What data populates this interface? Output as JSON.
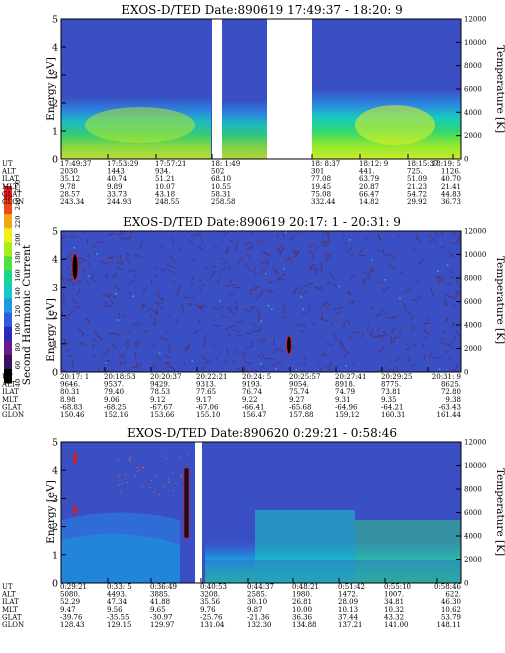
{
  "colors": {
    "background": "#3a4fc4",
    "noise": "#5b2a58",
    "colorbar": [
      "#000000",
      "#3a1060",
      "#6a1a8a",
      "#2a2ab8",
      "#2f5fd8",
      "#1e9ae0",
      "#16c8c8",
      "#18d890",
      "#50e040",
      "#a8ec20",
      "#f0f018",
      "#f0a818",
      "#f04818",
      "#e81818"
    ]
  },
  "colorbar_label": "Second Harmonic Current",
  "colorbar_ticks": [
    "40",
    "60",
    "80",
    "100",
    "120",
    "140",
    "160",
    "180",
    "200",
    "220",
    "240",
    "250"
  ],
  "chart_data": [
    {
      "type": "heatmap",
      "title": "EXOS-D/TED   Date:890619  17:49:37 - 18:20: 9",
      "ylabel": "Energy [eV]",
      "ylabel_right": "Temperature [K]",
      "ylim": [
        0,
        5
      ],
      "ylim_right": [
        0,
        12000
      ],
      "yticks": [
        "0",
        "1",
        "2",
        "3",
        "4",
        "5"
      ],
      "yticks_right": [
        "0",
        "2000",
        "4000",
        "6000",
        "8000",
        "10000",
        "12000"
      ],
      "gaps": [
        [
          0.31,
          0.35
        ],
        [
          0.55,
          0.69
        ]
      ],
      "row_labels": [
        "UT",
        "ALT",
        "ILAT",
        "MLT",
        "GLAT",
        "GLON"
      ],
      "columns": [
        {
          "UT": "17:49:37",
          "ALT": "2030",
          "ILAT": "35.12",
          "MLT": "9.78",
          "GLAT": "28.57",
          "GLON": "243.34"
        },
        {
          "UT": "17:53:29",
          "ALT": "1443",
          "ILAT": "40.74",
          "MLT": "9.89",
          "GLAT": "33.73",
          "GLON": "244.93"
        },
        {
          "UT": "17:57:21",
          "ALT": "934.",
          "ILAT": "51.21",
          "MLT": "10.07",
          "GLAT": "43.18",
          "GLON": "248.55"
        },
        {
          "UT": "18: 1:49",
          "ALT": "502",
          "ILAT": "68.10",
          "MLT": "10.55",
          "GLAT": "58.31",
          "GLON": "258.58"
        },
        {
          "UT": "18: 8:37",
          "ALT": "301",
          "ILAT": "77.08",
          "MLT": "19.45",
          "GLAT": "75.08",
          "GLON": "332.44"
        },
        {
          "UT": "18:12: 9",
          "ALT": "441.",
          "ILAT": "63.79",
          "MLT": "20.87",
          "GLAT": "66.47",
          "GLON": "14.82"
        },
        {
          "UT": "18:15:37",
          "ALT": "725.",
          "ILAT": "51.09",
          "MLT": "21.23",
          "GLAT": "54.72",
          "GLON": "29.92"
        },
        {
          "UT": "18:19: 5",
          "ALT": "1126.",
          "ILAT": "40.70",
          "MLT": "21.41",
          "GLAT": "44.83",
          "GLON": "36.73"
        }
      ]
    },
    {
      "type": "heatmap",
      "title": "EXOS-D/TED   Date:890619  20:17: 1 - 20:31: 9",
      "ylabel": "Energy [eV]",
      "ylabel_right": "Temperature [K]",
      "ylim": [
        0,
        5
      ],
      "ylim_right": [
        0,
        12000
      ],
      "yticks": [
        "0",
        "1",
        "2",
        "3",
        "4",
        "5"
      ],
      "yticks_right": [
        "0",
        "2000",
        "4000",
        "6000",
        "8000",
        "10000",
        "12000"
      ],
      "gaps": [],
      "row_labels": [
        "UT",
        "ALT",
        "ILAT",
        "MLT",
        "GLAT",
        "GLON"
      ],
      "columns": [
        {
          "UT": "20:17: 1",
          "ALT": "9646.",
          "ILAT": "80.31",
          "MLT": "8.98",
          "GLAT": "-68.83",
          "GLON": "150.46"
        },
        {
          "UT": "20:18:53",
          "ALT": "9537.",
          "ILAT": "79.40",
          "MLT": "9.06",
          "GLAT": "-68.25",
          "GLON": "152.16"
        },
        {
          "UT": "20:20:37",
          "ALT": "9429.",
          "ILAT": "78.53",
          "MLT": "9.12",
          "GLAT": "-67.67",
          "GLON": "153.66"
        },
        {
          "UT": "20:22:21",
          "ALT": "9313.",
          "ILAT": "77.65",
          "MLT": "9.17",
          "GLAT": "-67.06",
          "GLON": "155.10"
        },
        {
          "UT": "20:24: 5",
          "ALT": "9193.",
          "ILAT": "76.74",
          "MLT": "9.22",
          "GLAT": "-66.41",
          "GLON": "156.47"
        },
        {
          "UT": "20:25:57",
          "ALT": "9054.",
          "ILAT": "75.74",
          "MLT": "9.27",
          "GLAT": "-65.68",
          "GLON": "157.88"
        },
        {
          "UT": "20:27:41",
          "ALT": "8918.",
          "ILAT": "74.79",
          "MLT": "9.31",
          "GLAT": "-64.96",
          "GLON": "159.12"
        },
        {
          "UT": "20:29:25",
          "ALT": "8775.",
          "ILAT": "73.81",
          "MLT": "9.35",
          "GLAT": "-64.21",
          "GLON": "160.31"
        },
        {
          "UT": "20:31: 9",
          "ALT": "8625.",
          "ILAT": "72.80",
          "MLT": "9.38",
          "GLAT": "-63.43",
          "GLON": "161.44"
        }
      ]
    },
    {
      "type": "heatmap",
      "title": "EXOS-D/TED   Date:890620   0:29:21 -  0:58:46",
      "ylabel": "Energy [eV]",
      "ylabel_right": "Temperature [K]",
      "ylim": [
        0,
        5
      ],
      "ylim_right": [
        0,
        12000
      ],
      "yticks": [
        "0",
        "1",
        "2",
        "3",
        "4",
        "5"
      ],
      "yticks_right": [
        "0",
        "2000",
        "4000",
        "6000",
        "8000",
        "10000",
        "12000"
      ],
      "gaps": [
        [
          0.285,
          0.305
        ]
      ],
      "row_labels": [
        "UT",
        "ALT",
        "ILAT",
        "MLT",
        "GLAT",
        "GLON"
      ],
      "columns": [
        {
          "UT": "0:29:21",
          "ALT": "5080.",
          "ILAT": "52.29",
          "MLT": "9.47",
          "GLAT": "-39.76",
          "GLON": "128.43"
        },
        {
          "UT": "0:33: 5",
          "ALT": "4493.",
          "ILAT": "47.34",
          "MLT": "9.56",
          "GLAT": "-35.55",
          "GLON": "129.15"
        },
        {
          "UT": "0:36:49",
          "ALT": "3885.",
          "ILAT": "41.88",
          "MLT": "9.65",
          "GLAT": "-30.97",
          "GLON": "129.97"
        },
        {
          "UT": "0:40:53",
          "ALT": "3208.",
          "ILAT": "35.56",
          "MLT": "9.76",
          "GLAT": "-25.76",
          "GLON": "131.04"
        },
        {
          "UT": "0:44:37",
          "ALT": "2585.",
          "ILAT": "30.10",
          "MLT": "9.87",
          "GLAT": "-21.36",
          "GLON": "132.30"
        },
        {
          "UT": "0:48:21",
          "ALT": "1980.",
          "ILAT": "26.81",
          "MLT": "10.00",
          "GLAT": "36.36",
          "GLON": "134.88"
        },
        {
          "UT": "0:51:42",
          "ALT": "1472.",
          "ILAT": "28.09",
          "MLT": "10.13",
          "GLAT": "37.44",
          "GLON": "137.21"
        },
        {
          "UT": "0:55:10",
          "ALT": "1007.",
          "ILAT": "34.81",
          "MLT": "10.32",
          "GLAT": "43.32",
          "GLON": "141.00"
        },
        {
          "UT": "0:58:46",
          "ALT": "622.",
          "ILAT": "46.30",
          "MLT": "10.62",
          "GLAT": "53.79",
          "GLON": "148.11"
        }
      ]
    }
  ]
}
